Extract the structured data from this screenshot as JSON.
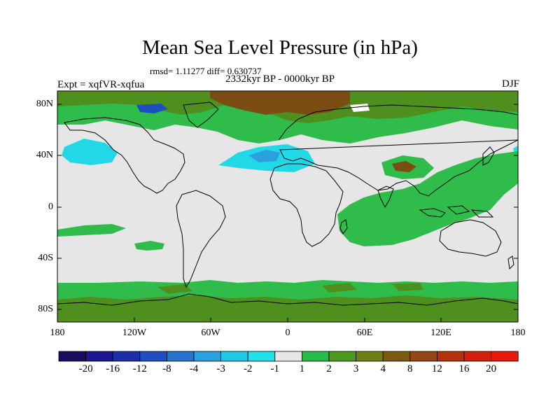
{
  "title": "Mean Sea Level Pressure (in hPa)",
  "stats": "rmsd= 1.11277 diff= 0.630737",
  "left_label": "Expt = xqfVR-xqfua",
  "center_label": "2332kyr BP - 0000kyr BP",
  "right_label": "DJF",
  "lat_ticks": [
    "80N",
    "40N",
    "0",
    "40S",
    "80S"
  ],
  "lon_ticks": [
    "180",
    "120W",
    "60W",
    "0",
    "60E",
    "120E",
    "180"
  ],
  "colorbar": {
    "labels": [
      "-20",
      "-16",
      "-12",
      "-8",
      "-4",
      "-3",
      "-2",
      "-1",
      "1",
      "2",
      "3",
      "4",
      "8",
      "12",
      "16",
      "20"
    ],
    "colors": [
      "#1a0b5e",
      "#1f1691",
      "#1c2fa6",
      "#1f4fbf",
      "#2a72cc",
      "#2aa1dc",
      "#22c8e6",
      "#20e2e8",
      "#e6e6e6",
      "#28bc4a",
      "#4f9a1e",
      "#6f7f16",
      "#7b5a12",
      "#954516",
      "#b3330f",
      "#d1200c",
      "#e51a0a"
    ]
  },
  "colors": {
    "neutral": "#e6e6e6",
    "green_light": "#2fbc4b",
    "green_olive": "#4f8f1e",
    "brown": "#7b4d12",
    "cyan": "#22d8e6",
    "blue": "#2aa1dc",
    "coast": "#000000"
  }
}
